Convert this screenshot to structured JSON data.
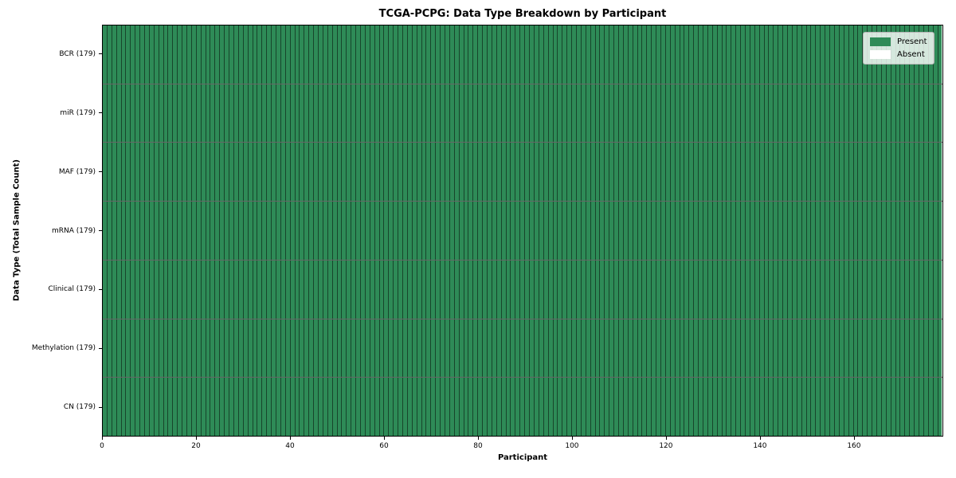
{
  "title": "TCGA-PCPG: Data Type Breakdown by Participant",
  "xlabel": "Participant",
  "ylabel": "Data Type (Total Sample Count)",
  "legend": {
    "present_label": "Present",
    "absent_label": "Absent"
  },
  "colors": {
    "present": "#2e8b57",
    "absent": "#ffffff",
    "cell_edge": "rgba(0,0,0,0.5)",
    "row_separator": "rgba(0,0,0,0.6)",
    "plot_border": "#000000"
  },
  "chart_data": {
    "type": "heatmap",
    "title": "TCGA-PCPG: Data Type Breakdown by Participant",
    "xlabel": "Participant",
    "ylabel": "Data Type (Total Sample Count)",
    "n_participants": 179,
    "x_range": [
      0,
      179
    ],
    "x_ticks": [
      0,
      20,
      40,
      60,
      80,
      100,
      120,
      140,
      160
    ],
    "grid": "cell borders on",
    "legend_position": "upper right",
    "legend_entries": [
      {
        "label": "Present",
        "color": "#2e8b57"
      },
      {
        "label": "Absent",
        "color": "#ffffff"
      }
    ],
    "rows": [
      {
        "label": "BCR (179)",
        "data_type": "BCR",
        "total_samples": 179,
        "present_count": 179,
        "absent_count": 0
      },
      {
        "label": "miR (179)",
        "data_type": "miR",
        "total_samples": 179,
        "present_count": 179,
        "absent_count": 0
      },
      {
        "label": "MAF (179)",
        "data_type": "MAF",
        "total_samples": 179,
        "present_count": 179,
        "absent_count": 0
      },
      {
        "label": "mRNA (179)",
        "data_type": "mRNA",
        "total_samples": 179,
        "present_count": 179,
        "absent_count": 0
      },
      {
        "label": "Clinical (179)",
        "data_type": "Clinical",
        "total_samples": 179,
        "present_count": 179,
        "absent_count": 0
      },
      {
        "label": "Methylation (179)",
        "data_type": "Methylation",
        "total_samples": 179,
        "present_count": 179,
        "absent_count": 0
      },
      {
        "label": "CN (179)",
        "data_type": "CN",
        "total_samples": 179,
        "present_count": 179,
        "absent_count": 0
      }
    ]
  }
}
